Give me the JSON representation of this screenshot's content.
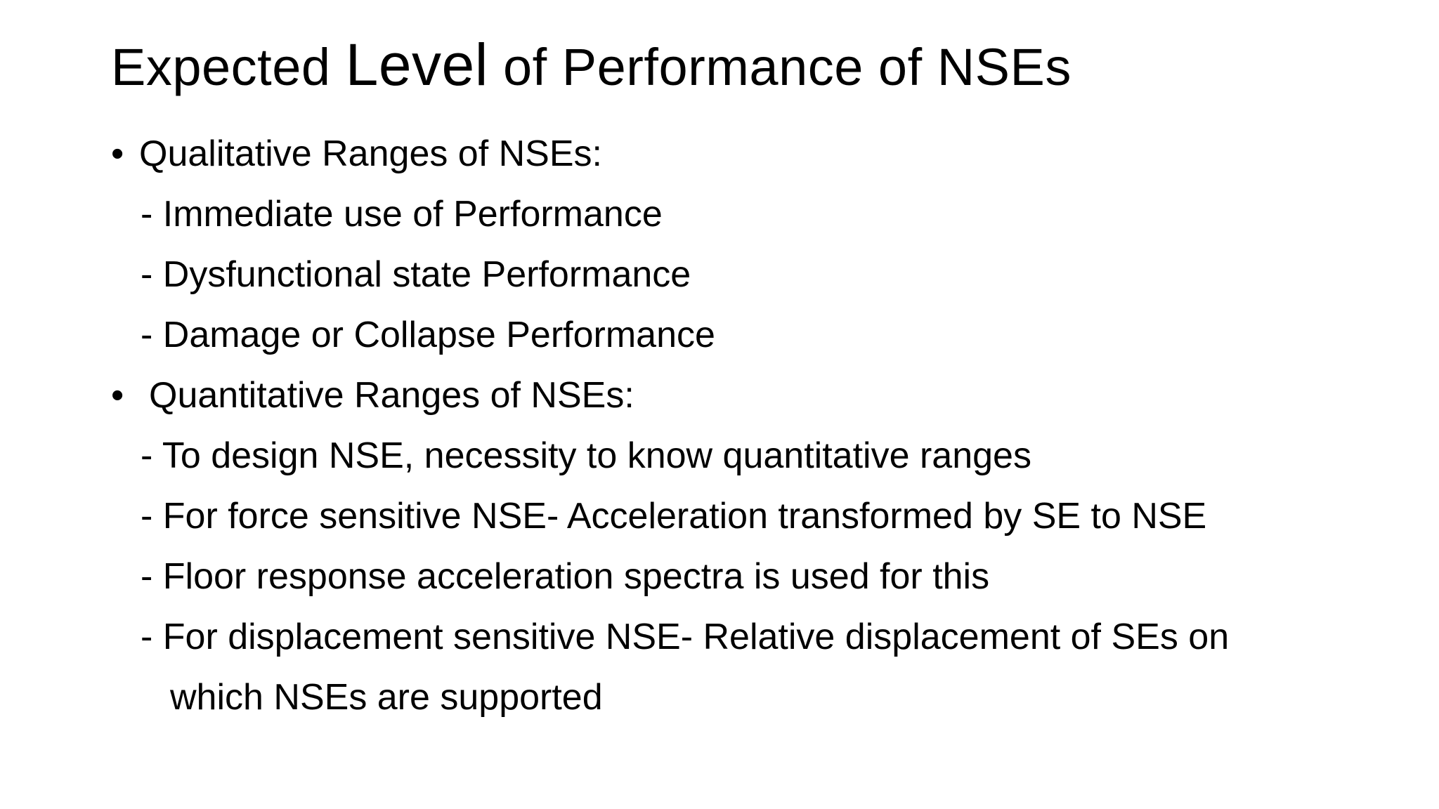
{
  "title": {
    "part1": "Expected ",
    "part2": "Level",
    "part3": " of Performance of NSEs"
  },
  "bullets": [
    {
      "symbol": "•",
      "heading": "Qualitative Ranges of NSEs:",
      "items": [
        "- Immediate use of Performance",
        "- Dysfunctional state Performance",
        "- Damage or Collapse Performance"
      ]
    },
    {
      "symbol": "•",
      "heading": "Quantitative Ranges of NSEs:",
      "items": [
        "- To design NSE, necessity to know quantitative ranges",
        "- For force sensitive NSE- Acceleration transformed by SE to NSE",
        "- Floor response acceleration spectra is used for this",
        "- For displacement sensitive NSE- Relative displacement of SEs on",
        "which NSEs are supported"
      ]
    }
  ]
}
